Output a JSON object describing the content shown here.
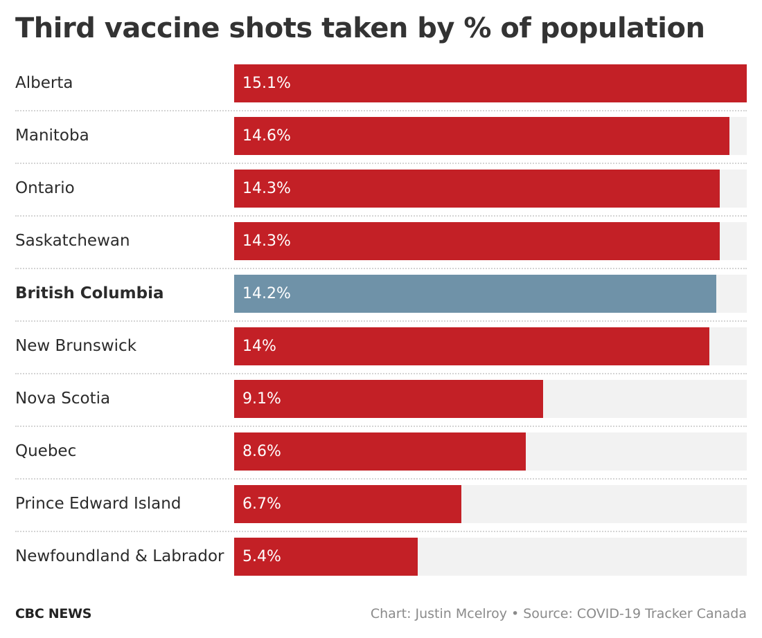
{
  "title": "Third vaccine shots taken by % of population",
  "footer": {
    "brand": "CBC NEWS",
    "credit": "Chart: Justin Mcelroy • Source: COVID-19 Tracker Canada"
  },
  "colors": {
    "bar_default": "#c32026",
    "bar_highlight": "#6f92a8",
    "track": "#f2f2f2"
  },
  "chart_data": {
    "type": "bar",
    "orientation": "horizontal",
    "title": "Third vaccine shots taken by % of population",
    "categories": [
      "Alberta",
      "Manitoba",
      "Ontario",
      "Saskatchewan",
      "British Columbia",
      "New Brunswick",
      "Nova Scotia",
      "Quebec",
      "Prince Edward Island",
      "Newfoundland & Labrador"
    ],
    "values": [
      15.1,
      14.6,
      14.3,
      14.3,
      14.2,
      14,
      9.1,
      8.6,
      6.7,
      5.4
    ],
    "value_labels": [
      "15.1%",
      "14.6%",
      "14.3%",
      "14.3%",
      "14.2%",
      "14%",
      "9.1%",
      "8.6%",
      "6.7%",
      "5.4%"
    ],
    "highlight": "British Columbia",
    "xlim": [
      0,
      15.1
    ],
    "grid": false,
    "legend": "none"
  }
}
